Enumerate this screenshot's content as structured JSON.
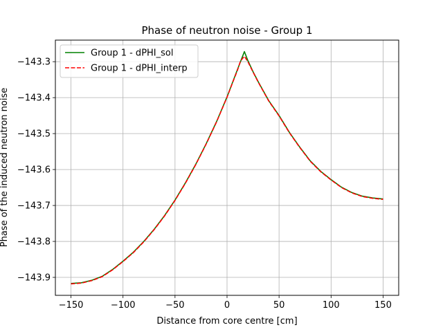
{
  "chart_data": {
    "type": "line",
    "title": "Phase of neutron noise - Group 1",
    "xlabel": "Distance from core centre [cm]",
    "ylabel": "Phase of the induced neutron noise",
    "xlim": [
      -165,
      165
    ],
    "ylim": [
      -143.95,
      -143.24
    ],
    "xticks": [
      -150,
      -100,
      -50,
      0,
      50,
      100,
      150
    ],
    "xtick_labels": [
      "−150",
      "−100",
      "−50",
      "0",
      "50",
      "100",
      "150"
    ],
    "yticks": [
      -143.3,
      -143.4,
      -143.5,
      -143.6,
      -143.7,
      -143.8,
      -143.9
    ],
    "ytick_labels": [
      "−143.3",
      "−143.4",
      "−143.5",
      "−143.6",
      "−143.7",
      "−143.8",
      "−143.9"
    ],
    "grid": true,
    "legend_position": "top-left",
    "series": [
      {
        "name": "Group 1 - dPHI_sol",
        "color": "#008000",
        "dash": "solid",
        "x": [
          -150,
          -140,
          -130,
          -120,
          -110,
          -100,
          -90,
          -80,
          -70,
          -60,
          -50,
          -40,
          -30,
          -20,
          -10,
          0,
          5,
          10,
          16.7,
          20,
          25,
          30,
          40,
          50,
          60,
          70,
          80,
          90,
          100,
          110,
          120,
          130,
          140,
          150
        ],
        "y": [
          -143.917,
          -143.915,
          -143.908,
          -143.897,
          -143.878,
          -143.855,
          -143.83,
          -143.8,
          -143.766,
          -143.728,
          -143.685,
          -143.637,
          -143.585,
          -143.528,
          -143.466,
          -143.398,
          -143.36,
          -143.322,
          -143.272,
          -143.297,
          -143.328,
          -143.356,
          -143.408,
          -143.45,
          -143.497,
          -143.538,
          -143.576,
          -143.605,
          -143.628,
          -143.649,
          -143.664,
          -143.674,
          -143.679,
          -143.682
        ]
      },
      {
        "name": "Group 1 - dPHI_interp",
        "color": "#ff0000",
        "dash": "dashed",
        "x": [
          -150,
          -140,
          -130,
          -120,
          -110,
          -100,
          -90,
          -80,
          -70,
          -60,
          -50,
          -40,
          -30,
          -20,
          -10,
          0,
          5,
          10,
          13,
          16.7,
          20,
          25,
          30,
          40,
          50,
          60,
          70,
          80,
          90,
          100,
          110,
          120,
          130,
          140,
          150
        ],
        "y": [
          -143.918,
          -143.916,
          -143.909,
          -143.898,
          -143.879,
          -143.856,
          -143.831,
          -143.801,
          -143.767,
          -143.729,
          -143.686,
          -143.638,
          -143.586,
          -143.529,
          -143.467,
          -143.399,
          -143.361,
          -143.324,
          -143.298,
          -143.285,
          -143.3,
          -143.329,
          -143.357,
          -143.409,
          -143.451,
          -143.498,
          -143.539,
          -143.577,
          -143.606,
          -143.629,
          -143.65,
          -143.665,
          -143.675,
          -143.68,
          -143.683
        ]
      }
    ]
  }
}
